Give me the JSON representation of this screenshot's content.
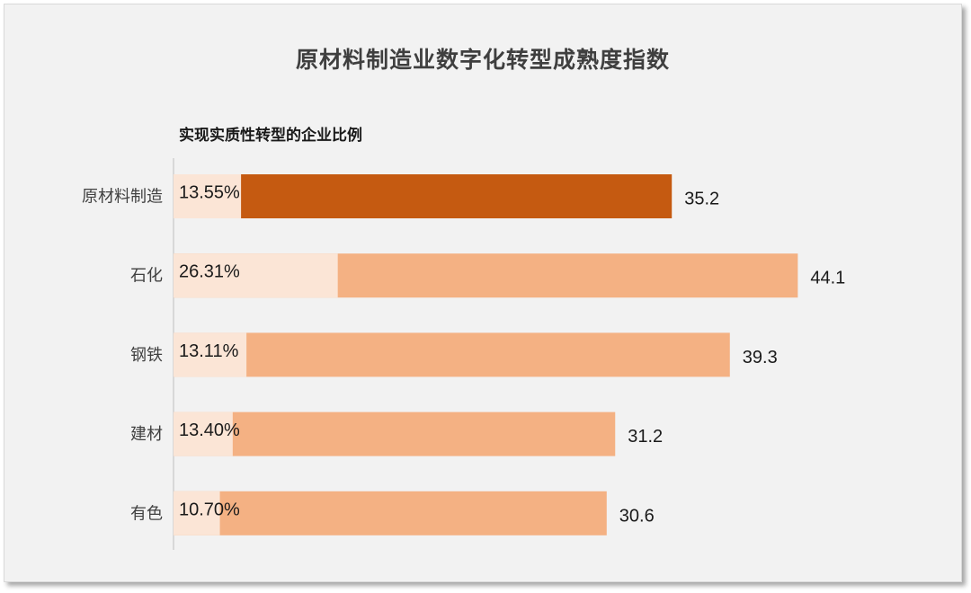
{
  "chart_data": {
    "type": "bar",
    "orientation": "horizontal",
    "title": "原材料制造业数字化转型成熟度指数",
    "subtitle": "实现实质性转型的企业比例",
    "categories": [
      "原材料制造",
      "石化",
      "钢铁",
      "建材",
      "有色"
    ],
    "series": [
      {
        "values": [
          35.2,
          44.1,
          39.3,
          31.2,
          30.6
        ]
      },
      {
        "values": [
          13.55,
          26.31,
          13.11,
          13.4,
          10.7
        ],
        "labels": [
          "13.55%",
          "26.31%",
          "13.11%",
          "13.40%",
          "10.70%"
        ]
      }
    ],
    "value_labels": [
      "35.2",
      "44.1",
      "39.3",
      "31.2",
      "30.6"
    ],
    "highlight_index": 0,
    "colors": {
      "highlight": "#c55a11",
      "bar": "#f4b183",
      "share": "#fbe5d6",
      "axis": "#bfbfbf",
      "background": "#f2f2f2"
    },
    "xlim": [
      0,
      50
    ],
    "grid": false,
    "legend": "none"
  }
}
